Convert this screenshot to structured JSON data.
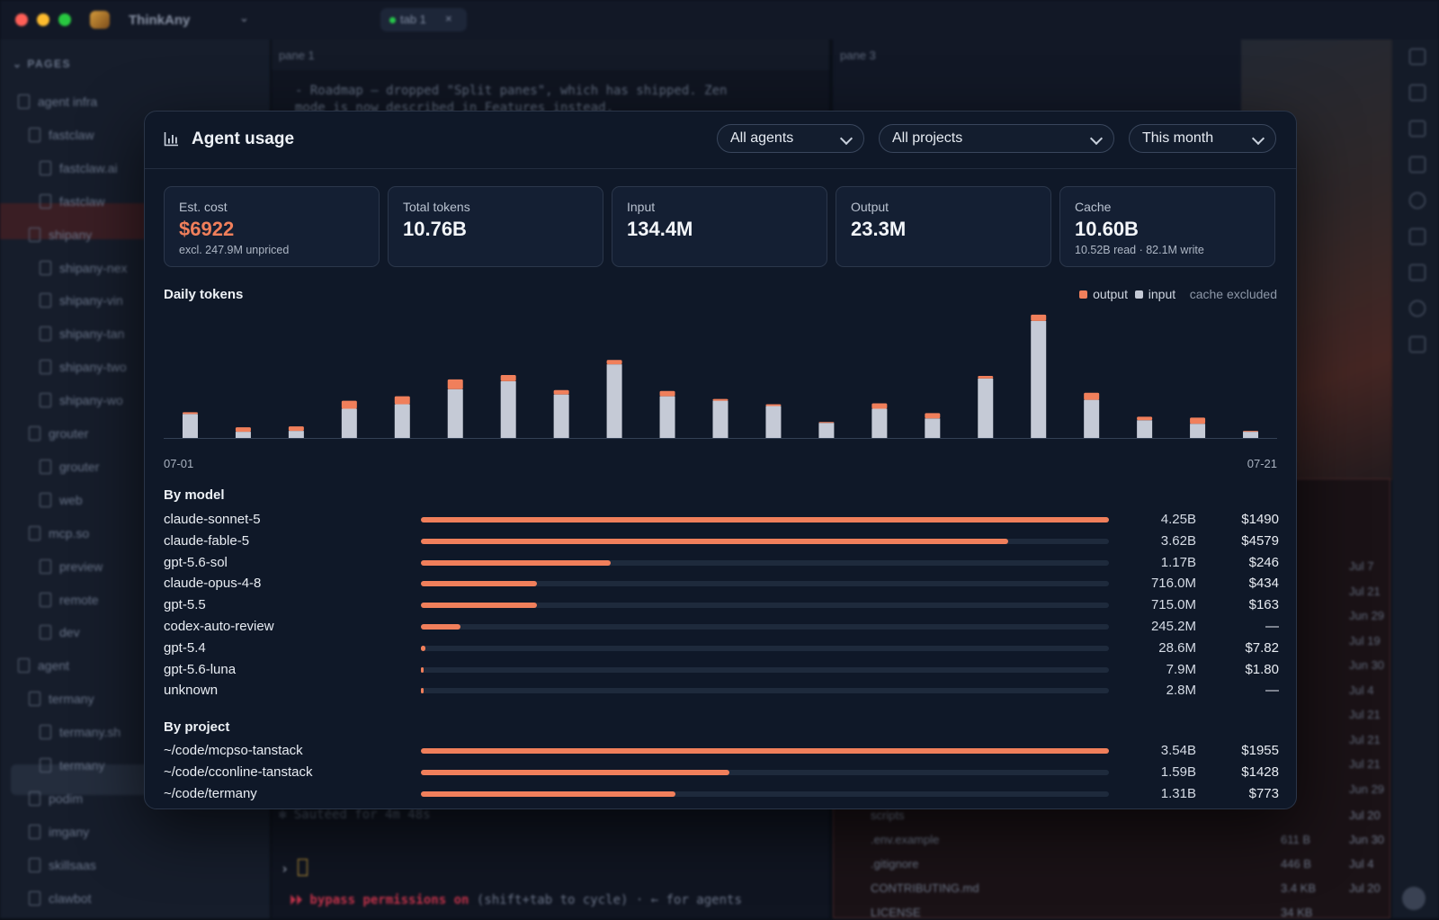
{
  "app": {
    "name": "ThinkAny",
    "tab_label": "tab 1",
    "sidebar_heading": "PAGES",
    "sidebar_items": [
      "agent infra",
      "fastclaw",
      "fastclaw.ai",
      "fastclaw",
      "shipany",
      "shipany-nex",
      "shipany-vin",
      "shipany-tan",
      "shipany-two",
      "shipany-wo",
      "grouter",
      "grouter",
      "web",
      "mcp.so",
      "preview",
      "remote",
      "dev",
      "agent",
      "termany",
      "termany.sh",
      "termany",
      "podim",
      "imgany",
      "skillsaas",
      "clawbot"
    ],
    "pane1_label": "pane 1",
    "pane3_label": "pane 3",
    "pane1_code_lines": [
      "- Roadmap — dropped \"Split panes\", which has shipped. Zen",
      "mode is now described in Features instead."
    ],
    "saute_line": "✻ Sautéed for 4m 48s",
    "bypass_prefix": "⏵⏵ bypass permissions on",
    "bypass_suffix": " (shift+tab to cycle) · ← for agents",
    "file_rows": [
      {
        "name": "scripts",
        "size": "",
        "date": "Jul 20"
      },
      {
        "name": ".env.example",
        "size": "611 B",
        "date": "Jun 30"
      },
      {
        "name": ".gitignore",
        "size": "446 B",
        "date": "Jul 4"
      },
      {
        "name": "CONTRIBUTING.md",
        "size": "3.4 KB",
        "date": "Jul 20"
      },
      {
        "name": "LICENSE",
        "size": "34 KB",
        "date": ""
      }
    ],
    "right_dates": [
      "Jul 7",
      "Jul 21",
      "Jun 29",
      "Jul 19",
      "Jun 30",
      "Jul 4",
      "Jul 21",
      "Jul 21",
      "Jul 21",
      "Jun 29"
    ]
  },
  "modal": {
    "title": "Agent usage",
    "filters": {
      "agents": "All agents",
      "projects": "All projects",
      "period": "This month"
    },
    "stats": [
      {
        "label": "Est. cost",
        "value": "$6922",
        "sub": "excl. 247.9M unpriced"
      },
      {
        "label": "Total tokens",
        "value": "10.76B",
        "sub": ""
      },
      {
        "label": "Input",
        "value": "134.4M",
        "sub": ""
      },
      {
        "label": "Output",
        "value": "23.3M",
        "sub": ""
      },
      {
        "label": "Cache",
        "value": "10.60B",
        "sub": "10.52B read · 82.1M write"
      }
    ],
    "daily_title": "Daily tokens",
    "legend": {
      "output": "output",
      "input": "input",
      "note": "cache excluded"
    },
    "by_model_title": "By model",
    "by_project_title": "By project",
    "models": [
      {
        "name": "claude-sonnet-5",
        "tokens": "4.25B",
        "cost": "$1490",
        "fraction": 1.0
      },
      {
        "name": "claude-fable-5",
        "tokens": "3.62B",
        "cost": "$4579",
        "fraction": 0.853
      },
      {
        "name": "gpt-5.6-sol",
        "tokens": "1.17B",
        "cost": "$246",
        "fraction": 0.276
      },
      {
        "name": "claude-opus-4-8",
        "tokens": "716.0M",
        "cost": "$434",
        "fraction": 0.168
      },
      {
        "name": "gpt-5.5",
        "tokens": "715.0M",
        "cost": "$163",
        "fraction": 0.168
      },
      {
        "name": "codex-auto-review",
        "tokens": "245.2M",
        "cost": "—",
        "fraction": 0.058
      },
      {
        "name": "gpt-5.4",
        "tokens": "28.6M",
        "cost": "$7.82",
        "fraction": 0.0067
      },
      {
        "name": "gpt-5.6-luna",
        "tokens": "7.9M",
        "cost": "$1.80",
        "fraction": 0.0019
      },
      {
        "name": "unknown",
        "tokens": "2.8M",
        "cost": "—",
        "fraction": 0.0007
      }
    ],
    "projects": [
      {
        "name": "~/code/mcpso-tanstack",
        "tokens": "3.54B",
        "cost": "$1955",
        "fraction": 1.0
      },
      {
        "name": "~/code/cconline-tanstack",
        "tokens": "1.59B",
        "cost": "$1428",
        "fraction": 0.449
      },
      {
        "name": "~/code/termany",
        "tokens": "1.31B",
        "cost": "$773",
        "fraction": 0.37
      }
    ]
  },
  "chart_data": {
    "type": "bar",
    "stacked": true,
    "title": "Daily tokens",
    "x_start_label": "07-01",
    "x_end_label": "07-21",
    "categories": [
      "07-01",
      "07-02",
      "07-03",
      "07-04",
      "07-05",
      "07-06",
      "07-07",
      "07-08",
      "07-09",
      "07-10",
      "07-11",
      "07-12",
      "07-13",
      "07-14",
      "07-15",
      "07-16",
      "07-17",
      "07-18",
      "07-19",
      "07-20",
      "07-21"
    ],
    "series": [
      {
        "name": "input",
        "color": "#c5cad6",
        "values": [
          27,
          7,
          8,
          33,
          38,
          55,
          64,
          49,
          83,
          47,
          42,
          36,
          17,
          33,
          22,
          67,
          132,
          43,
          20,
          16,
          7
        ]
      },
      {
        "name": "output",
        "color": "#f07f5b",
        "values": [
          2,
          5,
          5,
          9,
          9,
          11,
          7,
          5,
          5,
          6,
          2,
          2,
          1,
          6,
          6,
          3,
          7,
          8,
          4,
          7,
          1
        ]
      }
    ],
    "ylim": [
      0,
      145
    ],
    "grid": false
  },
  "colors": {
    "accent": "#f07f5b",
    "input": "#c5cad6",
    "modal_bg": "#0f1828"
  }
}
